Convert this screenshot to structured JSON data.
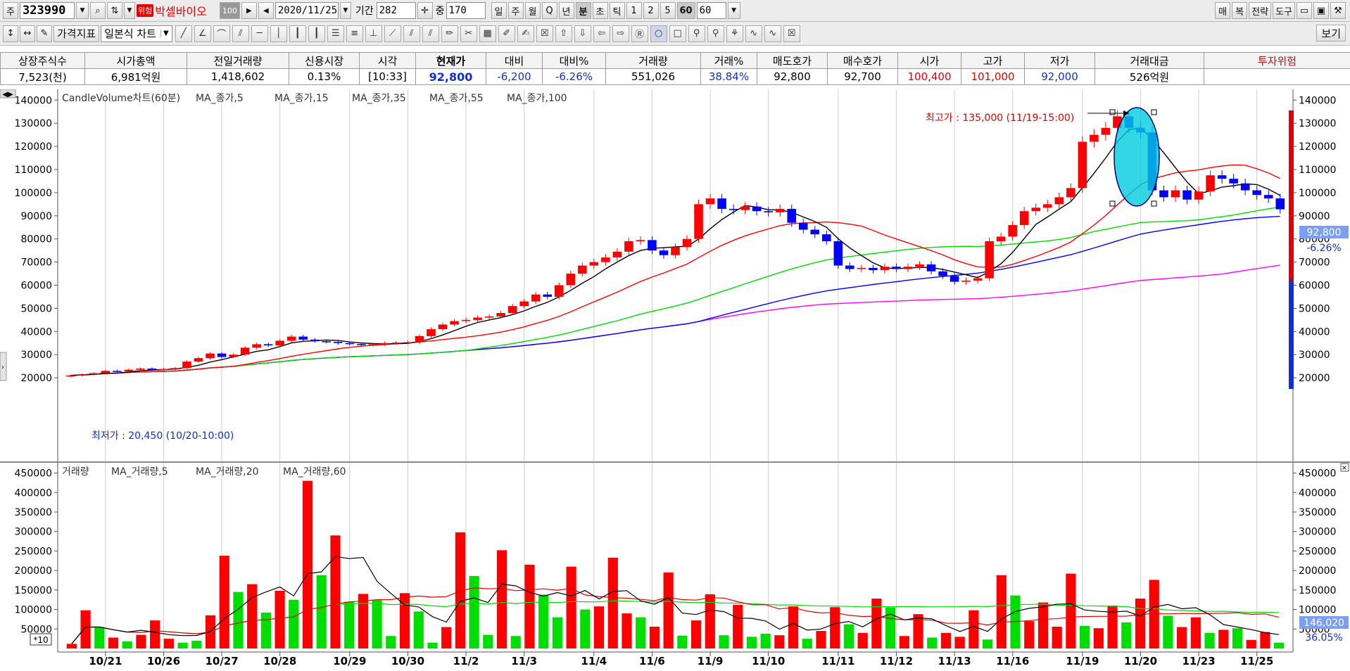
{
  "toolbar1": {
    "market_btn": "주",
    "code": "323990",
    "warning_badge": "위험",
    "stock_name": "박셀바이오",
    "box_100": "100",
    "date": "2020/11/25",
    "period_label": "기간",
    "period_value": "282",
    "mid_label": "중",
    "mid_value": "170",
    "intervals": [
      "일",
      "주",
      "월",
      "Q",
      "년",
      "분",
      "초",
      "틱",
      "1",
      "2",
      "5",
      "60"
    ],
    "interval_selected": "60",
    "interval_value": "60",
    "right_buttons": [
      "매",
      "복",
      "전략",
      "도구"
    ]
  },
  "toolbar2": {
    "indicator_btn": "가격지표",
    "chart_type": "일본식 차트",
    "view_btn": "보기"
  },
  "quote": {
    "headers": [
      "상장주식수",
      "시가총액",
      "전일거래량",
      "신용시장",
      "시각",
      "현재가",
      "대비",
      "대비%",
      "거래량",
      "거래%",
      "매도호가",
      "매수호가",
      "시가",
      "고가",
      "저가",
      "거래대금",
      "투자위험"
    ],
    "values": [
      "7,523(천)",
      "6,981억원",
      "1,418,602",
      "0.13%",
      "[10:33]",
      "92,800",
      "-6,200",
      "-6.26%",
      "551,026",
      "38.84%",
      "92,800",
      "92,700",
      "100,400",
      "101,000",
      "92,000",
      "526억원",
      ""
    ]
  },
  "chart_data": {
    "type": "candlestick",
    "price_legend": [
      "CandleVolume차트(60분)",
      "MA_종가,5",
      "MA_종가,15",
      "MA_종가,35",
      "MA_종가,55",
      "MA_종가,100"
    ],
    "volume_legend": [
      "거래량",
      "MA_거래량,5",
      "MA_거래량,20",
      "MA_거래량,60"
    ],
    "colors": {
      "up": "#ff0000",
      "down": "#0000ff",
      "ma5": "#000000",
      "ma15": "#ff0000",
      "ma35": "#00dd00",
      "ma55": "#0000ff",
      "ma100": "#ff00ff",
      "vol_up": "#ff0000",
      "vol_down": "#00dd00"
    },
    "y_price_ticks": [
      "140000",
      "130000",
      "120000",
      "110000",
      "100000",
      "90000",
      "80000",
      "70000",
      "60000",
      "50000",
      "40000",
      "30000",
      "20000"
    ],
    "y_price_range": [
      17000,
      141000
    ],
    "y_volume_ticks": [
      "450000",
      "400000",
      "350000",
      "300000",
      "250000",
      "200000",
      "150000",
      "100000",
      "50000"
    ],
    "y_volume_range": [
      0,
      460000
    ],
    "x_labels": [
      "10/21",
      "10/26",
      "10/27",
      "10/28",
      "10/29",
      "10/30",
      "11/2",
      "11/3",
      "11/4",
      "11/6",
      "11/9",
      "11/10",
      "11/11",
      "11/12",
      "11/13",
      "11/16",
      "11/19",
      "11/20",
      "11/23",
      "11/25"
    ],
    "high_annotation": "최고가 : 135,000 (11/19-15:00)",
    "low_annotation": "최저가 : 20,450 (10/20-10:00)",
    "current_price_tag": "92,800",
    "current_pct_tag": "-6.26%",
    "volume_tag": "146,020",
    "volume_pct_tag": "36.05%",
    "volume_multiplier": "*10",
    "price_path": [
      21000,
      21500,
      22000,
      23000,
      22800,
      23500,
      24000,
      23600,
      23800,
      24200,
      27000,
      28500,
      30500,
      29000,
      30000,
      33000,
      34500,
      34000,
      36000,
      37800,
      36500,
      35800,
      35500,
      35000,
      34600,
      34300,
      34500,
      35000,
      35200,
      35400,
      38000,
      41000,
      43000,
      44500,
      45000,
      46000,
      46500,
      48000,
      51000,
      53000,
      56000,
      55000,
      60000,
      65000,
      68500,
      70000,
      72000,
      74500,
      79000,
      79500,
      75000,
      73000,
      76500,
      80000,
      95000,
      97500,
      93000,
      92500,
      94000,
      92000,
      91500,
      93000,
      87000,
      84000,
      82000,
      79000,
      68500,
      67000,
      67500,
      66500,
      68000,
      67000,
      68000,
      69000,
      66000,
      64000,
      61500,
      62000,
      63000,
      79000,
      81000,
      86000,
      92000,
      93500,
      95000,
      98000,
      102000,
      122000,
      125000,
      128000,
      133000,
      128000,
      126000,
      101000,
      98000,
      101000,
      97000,
      100500,
      107500,
      106000,
      104000,
      101000,
      99000,
      97500,
      92800
    ],
    "volume_bars": [
      [
        12,
        1
      ],
      [
        98,
        1
      ],
      [
        55,
        0
      ],
      [
        28,
        1
      ],
      [
        18,
        0
      ],
      [
        35,
        1
      ],
      [
        72,
        1
      ],
      [
        25,
        1
      ],
      [
        15,
        0
      ],
      [
        20,
        0
      ],
      [
        85,
        1
      ],
      [
        238,
        1
      ],
      [
        145,
        0
      ],
      [
        165,
        1
      ],
      [
        92,
        0
      ],
      [
        148,
        1
      ],
      [
        125,
        0
      ],
      [
        430,
        1
      ],
      [
        188,
        0
      ],
      [
        290,
        1
      ],
      [
        120,
        0
      ],
      [
        140,
        1
      ],
      [
        124,
        0
      ],
      [
        32,
        0
      ],
      [
        142,
        1
      ],
      [
        95,
        0
      ],
      [
        15,
        0
      ],
      [
        55,
        1
      ],
      [
        298,
        1
      ],
      [
        186,
        0
      ],
      [
        35,
        0
      ],
      [
        252,
        1
      ],
      [
        32,
        0
      ],
      [
        215,
        1
      ],
      [
        138,
        0
      ],
      [
        80,
        0
      ],
      [
        210,
        1
      ],
      [
        100,
        0
      ],
      [
        108,
        1
      ],
      [
        233,
        1
      ],
      [
        90,
        1
      ],
      [
        80,
        0
      ],
      [
        56,
        1
      ],
      [
        195,
        1
      ],
      [
        33,
        0
      ],
      [
        72,
        1
      ],
      [
        139,
        1
      ],
      [
        34,
        0
      ],
      [
        112,
        1
      ],
      [
        30,
        0
      ],
      [
        38,
        0
      ],
      [
        34,
        1
      ],
      [
        108,
        1
      ],
      [
        25,
        0
      ],
      [
        45,
        1
      ],
      [
        106,
        1
      ],
      [
        62,
        0
      ],
      [
        40,
        1
      ],
      [
        128,
        1
      ],
      [
        105,
        0
      ],
      [
        32,
        1
      ],
      [
        88,
        1
      ],
      [
        28,
        0
      ],
      [
        40,
        1
      ],
      [
        30,
        1
      ],
      [
        98,
        1
      ],
      [
        23,
        0
      ],
      [
        188,
        1
      ],
      [
        136,
        0
      ],
      [
        70,
        1
      ],
      [
        118,
        1
      ],
      [
        56,
        1
      ],
      [
        192,
        1
      ],
      [
        58,
        0
      ],
      [
        52,
        1
      ],
      [
        110,
        1
      ],
      [
        67,
        0
      ],
      [
        128,
        1
      ],
      [
        176,
        1
      ],
      [
        84,
        0
      ],
      [
        55,
        1
      ],
      [
        80,
        1
      ],
      [
        40,
        0
      ],
      [
        48,
        1
      ],
      [
        52,
        0
      ],
      [
        22,
        1
      ],
      [
        42,
        1
      ],
      [
        15,
        0
      ]
    ]
  }
}
